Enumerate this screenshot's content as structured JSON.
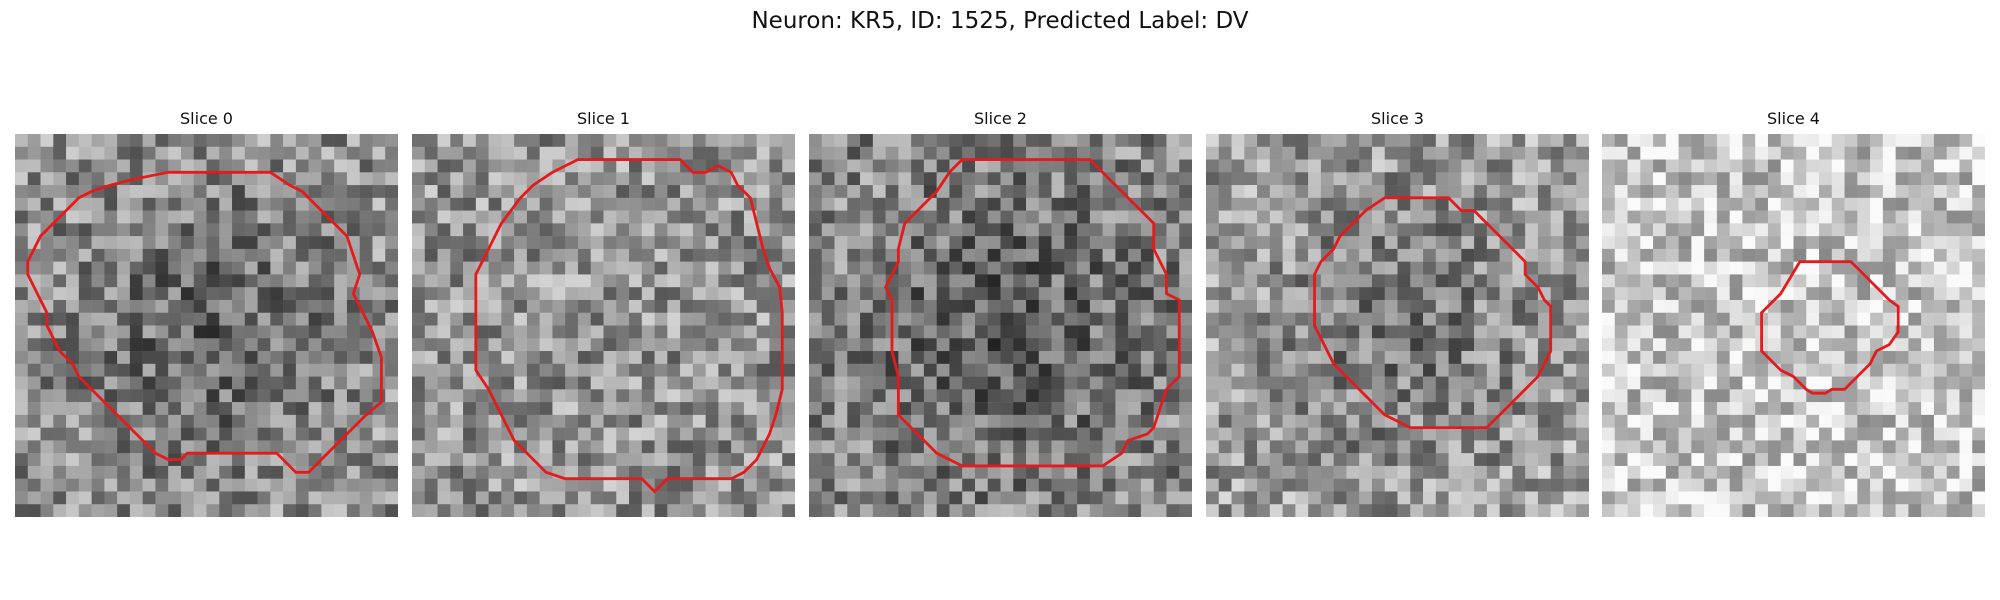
{
  "figure": {
    "title": "Neuron: KR5, ID: 1525, Predicted Label: DV"
  },
  "panels": [
    {
      "title": "Slice 0",
      "outline_color": "#e41a1c",
      "mean_level": 0.56,
      "dark_center": true
    },
    {
      "title": "Slice 1",
      "outline_color": "#e41a1c",
      "mean_level": 0.58,
      "dark_center": false
    },
    {
      "title": "Slice 2",
      "outline_color": "#e41a1c",
      "mean_level": 0.52,
      "dark_center": true
    },
    {
      "title": "Slice 3",
      "outline_color": "#e41a1c",
      "mean_level": 0.62,
      "dark_center": true
    },
    {
      "title": "Slice 4",
      "outline_color": "#e41a1c",
      "mean_level": 0.78,
      "dark_center": false
    }
  ]
}
